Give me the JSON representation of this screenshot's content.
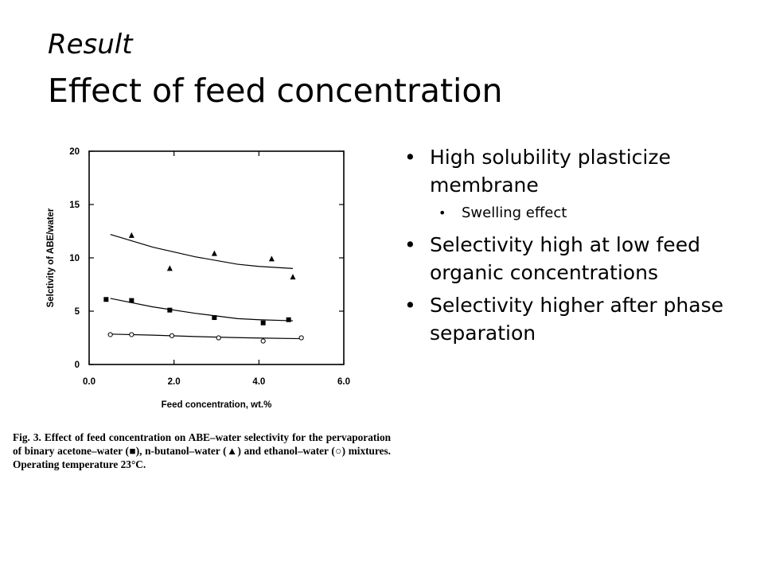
{
  "slide": {
    "subtitle": "Result",
    "title": "Effect of feed concentration"
  },
  "bullets": [
    {
      "text": "High solubility plasticize membrane",
      "level": 1
    },
    {
      "text": "Swelling effect",
      "level": 2
    },
    {
      "text": "Selectivity high at low feed organic concentrations",
      "level": 1
    },
    {
      "text": "Selectivity higher after phase separation",
      "level": 1
    }
  ],
  "figure": {
    "caption_line1": "Fig. 3. Effect of feed concentration on ABE–water selectivity for the",
    "caption_line2": "pervaporation of binary acetone–water (■), n-butanol–water (▲) and",
    "caption_line3": "ethanol–water (○) mixtures. Operating temperature 23°C."
  },
  "chart_data": {
    "type": "scatter",
    "xlabel": "Feed concentration, wt.%",
    "ylabel": "Selctivity of ABE/water",
    "xlim": [
      0,
      6
    ],
    "ylim": [
      0,
      20
    ],
    "x_ticks": [
      "0.0",
      "2.0",
      "4.0",
      "6.0"
    ],
    "y_ticks": [
      "0",
      "5",
      "10",
      "15",
      "20"
    ],
    "grid": false,
    "series": [
      {
        "name": "n-butanol–water",
        "marker": "triangle",
        "points": [
          [
            1.0,
            12.1
          ],
          [
            1.9,
            9.0
          ],
          [
            2.95,
            10.4
          ],
          [
            4.3,
            9.9
          ],
          [
            4.8,
            8.2
          ]
        ],
        "trend": [
          [
            0.5,
            12.2
          ],
          [
            1.5,
            11.0
          ],
          [
            2.5,
            10.1
          ],
          [
            3.5,
            9.4
          ],
          [
            4.0,
            9.2
          ],
          [
            4.8,
            9.0
          ]
        ]
      },
      {
        "name": "acetone–water",
        "marker": "square",
        "points": [
          [
            0.4,
            6.1
          ],
          [
            1.0,
            6.0
          ],
          [
            1.9,
            5.1
          ],
          [
            2.95,
            4.4
          ],
          [
            4.1,
            3.9
          ],
          [
            4.7,
            4.2
          ]
        ],
        "trend": [
          [
            0.5,
            6.2
          ],
          [
            1.5,
            5.4
          ],
          [
            2.5,
            4.8
          ],
          [
            3.5,
            4.3
          ],
          [
            4.0,
            4.2
          ],
          [
            4.8,
            4.1
          ]
        ]
      },
      {
        "name": "ethanol–water",
        "marker": "circle",
        "points": [
          [
            0.5,
            2.8
          ],
          [
            1.0,
            2.8
          ],
          [
            1.95,
            2.7
          ],
          [
            3.05,
            2.5
          ],
          [
            4.1,
            2.2
          ],
          [
            5.0,
            2.5
          ]
        ],
        "trend": [
          [
            0.5,
            2.85
          ],
          [
            1.5,
            2.75
          ],
          [
            2.5,
            2.62
          ],
          [
            3.5,
            2.52
          ],
          [
            4.0,
            2.48
          ],
          [
            5.0,
            2.42
          ]
        ]
      }
    ]
  }
}
